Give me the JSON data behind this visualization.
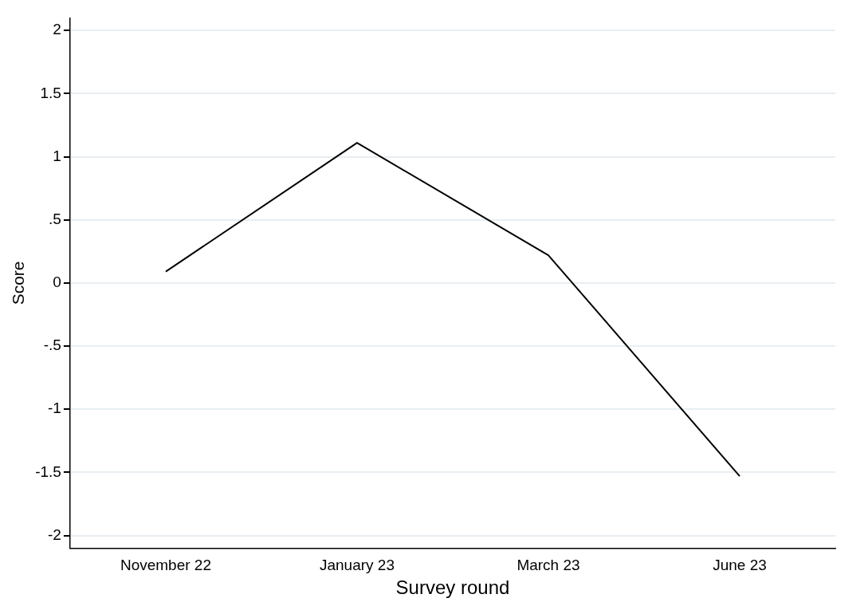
{
  "chart_data": {
    "type": "line",
    "xlabel": "Survey round",
    "ylabel": "Score",
    "categories": [
      "November 22",
      "January 23",
      "March 23",
      "June 23"
    ],
    "series": [
      {
        "color": "#000000",
        "values": [
          0.09,
          1.11,
          0.22,
          -1.53
        ]
      }
    ],
    "ylim": [
      -2.1,
      2.1
    ],
    "yticks": [
      {
        "value": -2,
        "label": "-2"
      },
      {
        "value": -1.5,
        "label": "-1.5"
      },
      {
        "value": -1,
        "label": "-1"
      },
      {
        "value": -0.5,
        "label": "-.5"
      },
      {
        "value": 0,
        "label": "0"
      },
      {
        "value": 0.5,
        "label": ".5"
      },
      {
        "value": 1,
        "label": "1"
      },
      {
        "value": 1.5,
        "label": "1.5"
      },
      {
        "value": 2,
        "label": "2"
      }
    ],
    "grid": "y",
    "legend": false,
    "marker": "none",
    "line_style": "solid"
  }
}
